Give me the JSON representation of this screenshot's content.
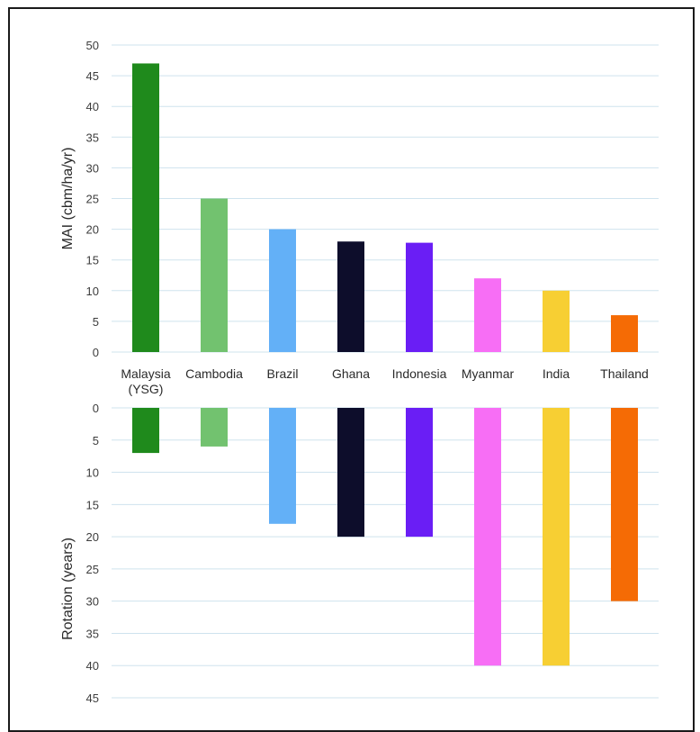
{
  "chart_data": [
    {
      "type": "bar",
      "title": "",
      "xlabel": "",
      "ylabel": "MAI (cbm/ha/yr)",
      "ylim": [
        0,
        50
      ],
      "yticks": [
        0,
        5,
        10,
        15,
        20,
        25,
        30,
        35,
        40,
        45,
        50
      ],
      "grid": true,
      "categories": [
        "Malaysia (YSG)",
        "Cambodia",
        "Brazil",
        "Ghana",
        "Indonesia",
        "Myanmar",
        "India",
        "Thailand"
      ],
      "category_labels": [
        [
          "Malaysia",
          "(YSG)"
        ],
        [
          "Cambodia"
        ],
        [
          "Brazil"
        ],
        [
          "Ghana"
        ],
        [
          "Indonesia"
        ],
        [
          "Myanmar"
        ],
        [
          "India"
        ],
        [
          "Thailand"
        ]
      ],
      "values": [
        47,
        25,
        20,
        18,
        17.8,
        12,
        10,
        6
      ],
      "colors": [
        "#1f8a1c",
        "#72c26f",
        "#63b0f7",
        "#0d0d2b",
        "#6a1ef5",
        "#f76ef5",
        "#f7cf33",
        "#f56b05"
      ]
    },
    {
      "type": "bar",
      "title": "",
      "xlabel": "",
      "ylabel": "Rotation (years)",
      "ylim": [
        0,
        45
      ],
      "yticks": [
        0,
        5,
        10,
        15,
        20,
        25,
        30,
        35,
        40,
        45
      ],
      "inverted": true,
      "grid": true,
      "categories": [
        "Malaysia (YSG)",
        "Cambodia",
        "Brazil",
        "Ghana",
        "Indonesia",
        "Myanmar",
        "India",
        "Thailand"
      ],
      "values": [
        7,
        6,
        18,
        20,
        20,
        40,
        40,
        30
      ],
      "colors": [
        "#1f8a1c",
        "#72c26f",
        "#63b0f7",
        "#0d0d2b",
        "#6a1ef5",
        "#f76ef5",
        "#f7cf33",
        "#f56b05"
      ]
    }
  ]
}
